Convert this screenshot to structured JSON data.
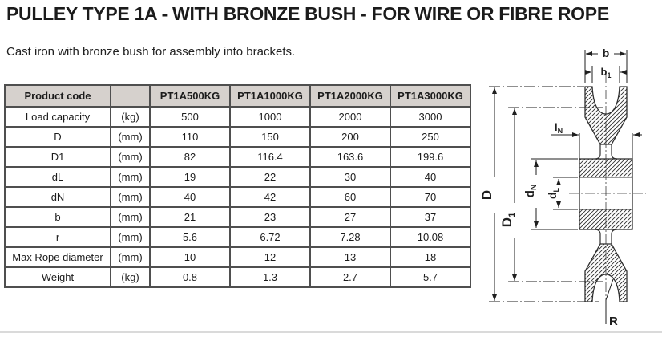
{
  "page": {
    "title": "PULLEY TYPE 1A - WITH BRONZE BUSH - FOR WIRE OR FIBRE ROPE",
    "subtitle": "Cast iron with bronze bush for assembly into brackets."
  },
  "colors": {
    "header_bg": "#d6d1cd",
    "grid_border": "#4f4f4f",
    "drawing_line": "#2f2f2f",
    "text": "#1c1c1c"
  },
  "table": {
    "header_label": "Product code",
    "header_unit": "",
    "product_codes": [
      "PT1A500KG",
      "PT1A1000KG",
      "PT1A2000KG",
      "PT1A3000KG"
    ],
    "rows": [
      {
        "label": "Load capacity",
        "unit": "(kg)",
        "values": [
          "500",
          "1000",
          "2000",
          "3000"
        ]
      },
      {
        "label": "D",
        "unit": "(mm)",
        "values": [
          "110",
          "150",
          "200",
          "250"
        ]
      },
      {
        "label": "D1",
        "unit": "(mm)",
        "values": [
          "82",
          "116.4",
          "163.6",
          "199.6"
        ]
      },
      {
        "label": "dL",
        "unit": "(mm)",
        "values": [
          "19",
          "22",
          "30",
          "40"
        ]
      },
      {
        "label": "dN",
        "unit": "(mm)",
        "values": [
          "40",
          "42",
          "60",
          "70"
        ]
      },
      {
        "label": "b",
        "unit": "(mm)",
        "values": [
          "21",
          "23",
          "27",
          "37"
        ]
      },
      {
        "label": "r",
        "unit": "(mm)",
        "values": [
          "5.6",
          "6.72",
          "7.28",
          "10.08"
        ]
      },
      {
        "label": "Max Rope diameter",
        "unit": "(mm)",
        "values": [
          "10",
          "12",
          "13",
          "18"
        ]
      },
      {
        "label": "Weight",
        "unit": "(kg)",
        "values": [
          "0.8",
          "1.3",
          "2.7",
          "5.7"
        ]
      }
    ]
  },
  "diagram": {
    "labels": {
      "b": {
        "base": "b",
        "sub": ""
      },
      "b1": {
        "base": "b",
        "sub": "1"
      },
      "lN": {
        "base": "l",
        "sub": "N"
      },
      "D": {
        "base": "D",
        "sub": ""
      },
      "D1": {
        "base": "D",
        "sub": "1"
      },
      "dN": {
        "base": "d",
        "sub": "N"
      },
      "dL": {
        "base": "d",
        "sub": "L"
      },
      "R": {
        "base": "R",
        "sub": ""
      }
    }
  }
}
